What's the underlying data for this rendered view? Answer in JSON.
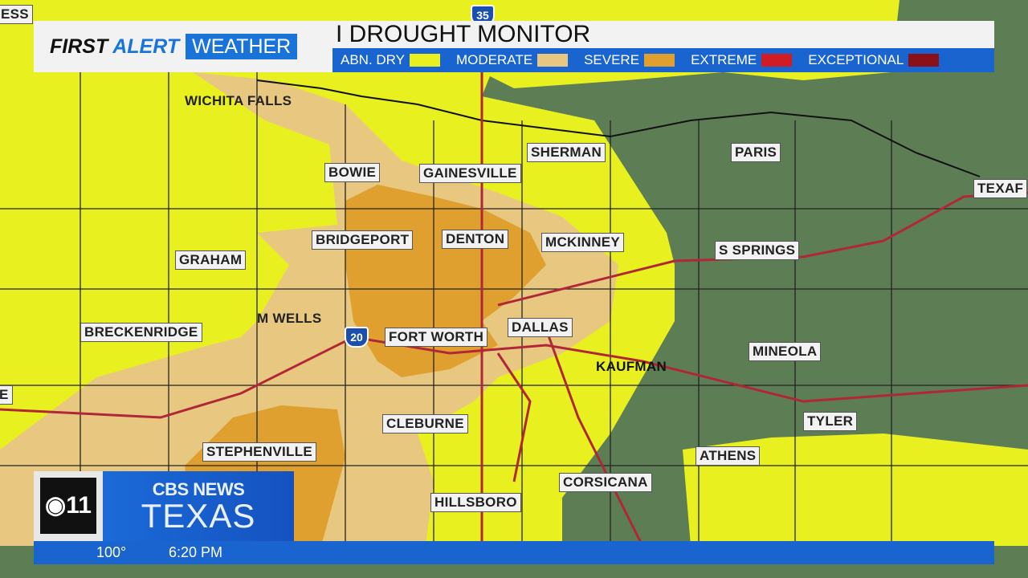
{
  "header": {
    "brand_first": "FIRST",
    "brand_alert": "ALERT",
    "brand_weather": "WEATHER",
    "title": "I DROUGHT MONITOR"
  },
  "legend": [
    {
      "label": "ABN. DRY",
      "color": "#e8f020"
    },
    {
      "label": "MODERATE",
      "color": "#e8c880"
    },
    {
      "label": "SEVERE",
      "color": "#e0a030"
    },
    {
      "label": "EXTREME",
      "color": "#d01c24"
    },
    {
      "label": "EXCEPTIONAL",
      "color": "#8c1018"
    }
  ],
  "cities": [
    "WICHITA FALLS",
    "SHERMAN",
    "PARIS",
    "BOWIE",
    "GAINESVILLE",
    "BRIDGEPORT",
    "DENTON",
    "MCKINNEY",
    "S SPRINGS",
    "GRAHAM",
    "M WELLS",
    "BRECKENRIDGE",
    "FORT WORTH",
    "DALLAS",
    "MINEOLA",
    "KAUFMAN",
    "TYLER",
    "CLEBURNE",
    "STEPHENVILLE",
    "ATHENS",
    "CORSICANA",
    "HILLSBORO"
  ],
  "partial_labels": [
    "ESS",
    "TEXAF",
    "E"
  ],
  "highways": [
    "35",
    "20"
  ],
  "logo": {
    "station": "CBS 11",
    "network": "CBS NEWS",
    "region": "TEXAS"
  },
  "ticker": {
    "temperature": "100°",
    "time": "6:20 PM"
  }
}
